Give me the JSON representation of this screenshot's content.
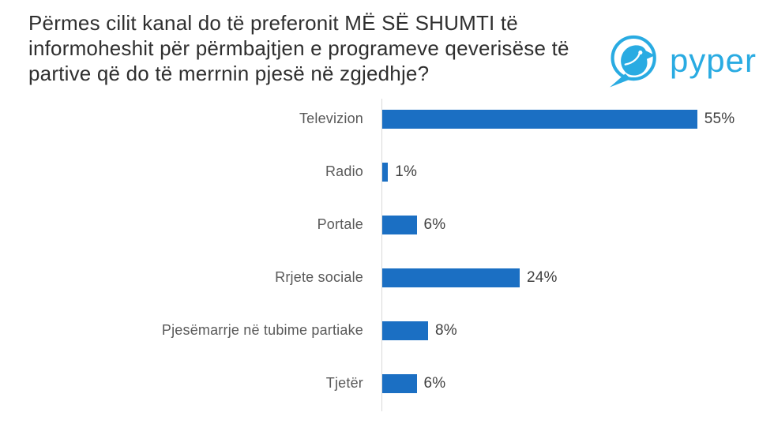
{
  "title": "Përmes cilit kanal do të preferonit MË SË SHUMTI të informoheshit për përmbajtjen e programeve qeverisëse të partive që do të merrnin pjesë në zgjedhje?",
  "logo": {
    "brand": "pyper",
    "icon": "bird-in-circle",
    "color": "#29ABE2"
  },
  "chart_data": {
    "type": "bar",
    "orientation": "horizontal",
    "title": "",
    "xlabel": "",
    "ylabel": "",
    "categories": [
      "Televizion",
      "Radio",
      "Portale",
      "Rrjete sociale",
      "Pjesëmarrje në tubime partiake",
      "Tjetër"
    ],
    "values": [
      55,
      1,
      6,
      24,
      8,
      6
    ],
    "value_labels": [
      "55%",
      "1%",
      "6%",
      "24%",
      "8%",
      "6%"
    ],
    "unit": "%",
    "xlim": [
      0,
      60
    ],
    "grid": false,
    "legend": false,
    "bar_color": "#1B6FC3",
    "category_label_color": "#595959",
    "value_label_color": "#3F3F3F",
    "axis_color": "#D9D9D9"
  }
}
